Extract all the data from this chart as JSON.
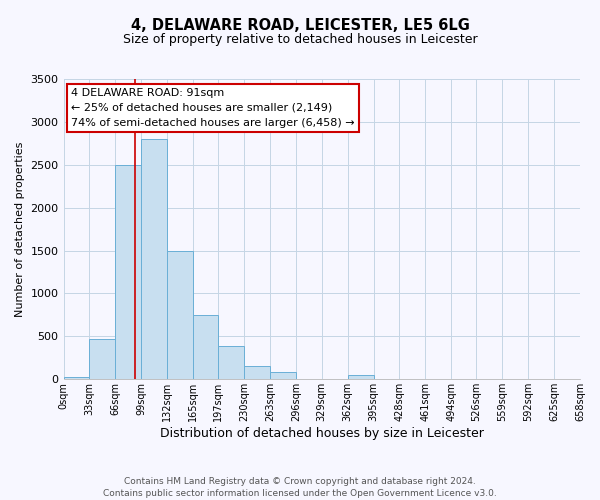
{
  "title": "4, DELAWARE ROAD, LEICESTER, LE5 6LG",
  "subtitle": "Size of property relative to detached houses in Leicester",
  "xlabel": "Distribution of detached houses by size in Leicester",
  "ylabel": "Number of detached properties",
  "bar_color": "#c8dff0",
  "bar_edge_color": "#6aafd6",
  "bin_edges": [
    0,
    33,
    66,
    99,
    132,
    165,
    197,
    230,
    263,
    296,
    329,
    362,
    395,
    428,
    461,
    494,
    526,
    559,
    592,
    625,
    658
  ],
  "bar_heights": [
    25,
    470,
    2500,
    2800,
    1490,
    750,
    390,
    150,
    80,
    0,
    0,
    55,
    0,
    0,
    0,
    0,
    0,
    0,
    0,
    0
  ],
  "tick_labels": [
    "0sqm",
    "33sqm",
    "66sqm",
    "99sqm",
    "132sqm",
    "165sqm",
    "197sqm",
    "230sqm",
    "263sqm",
    "296sqm",
    "329sqm",
    "362sqm",
    "395sqm",
    "428sqm",
    "461sqm",
    "494sqm",
    "526sqm",
    "559sqm",
    "592sqm",
    "625sqm",
    "658sqm"
  ],
  "ylim": [
    0,
    3500
  ],
  "yticks": [
    0,
    500,
    1000,
    1500,
    2000,
    2500,
    3000,
    3500
  ],
  "vline_x": 91,
  "vline_color": "#cc0000",
  "annotation_title": "4 DELAWARE ROAD: 91sqm",
  "annotation_line1": "← 25% of detached houses are smaller (2,149)",
  "annotation_line2": "74% of semi-detached houses are larger (6,458) →",
  "annotation_box_color": "#ffffff",
  "annotation_box_edge": "#cc0000",
  "footnote1": "Contains HM Land Registry data © Crown copyright and database right 2024.",
  "footnote2": "Contains public sector information licensed under the Open Government Licence v3.0.",
  "bg_color": "#f7f7ff",
  "grid_color": "#c5d5e5"
}
